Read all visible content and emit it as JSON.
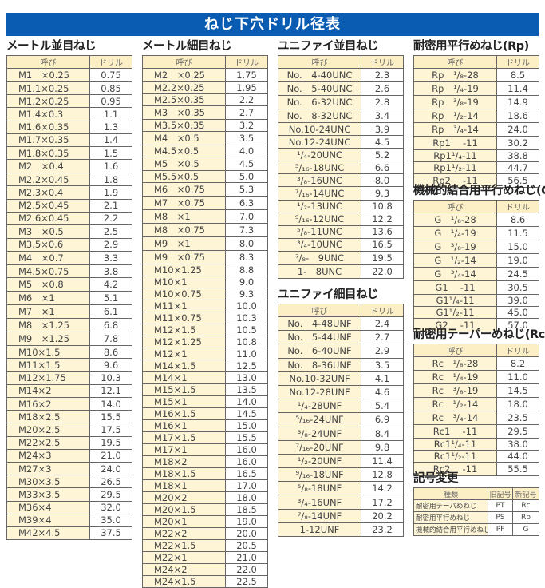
{
  "title": "ねじ下穴ドリル径表",
  "colors": {
    "banner": "#0a5cb3",
    "name_cell": "#fdf5d6",
    "header_cell": "#fcefc6"
  },
  "header": {
    "name": "呼び",
    "drill": "ドリル"
  },
  "tables": {
    "metric_coarse": {
      "title": "メートル並目ねじ",
      "rows": [
        [
          "M1　×0.25",
          "0.75"
        ],
        [
          "M1.1×0.25",
          "0.85"
        ],
        [
          "M1.2×0.25",
          "0.95"
        ],
        [
          "M1.4×0.3",
          "1.1"
        ],
        [
          "M1.6×0.35",
          "1.3"
        ],
        [
          "M1.7×0.35",
          "1.4"
        ],
        [
          "M1.8×0.35",
          "1.5"
        ],
        [
          "M2　×0.4",
          "1.6"
        ],
        [
          "M2.2×0.45",
          "1.8"
        ],
        [
          "M2.3×0.4",
          "1.9"
        ],
        [
          "M2.5×0.45",
          "2.1"
        ],
        [
          "M2.6×0.45",
          "2.2"
        ],
        [
          "M3　×0.5",
          "2.5"
        ],
        [
          "M3.5×0.6",
          "2.9"
        ],
        [
          "M4　×0.7",
          "3.3"
        ],
        [
          "M4.5×0.75",
          "3.8"
        ],
        [
          "M5　×0.8",
          "4.2"
        ],
        [
          "M6　×1",
          "5.1"
        ],
        [
          "M7　×1",
          "6.1"
        ],
        [
          "M8　×1.25",
          "6.8"
        ],
        [
          "M9　×1.25",
          "7.8"
        ],
        [
          "M10×1.5",
          "8.6"
        ],
        [
          "M11×1.5",
          "9.6"
        ],
        [
          "M12×1.75",
          "10.3"
        ],
        [
          "M14×2",
          "12.1"
        ],
        [
          "M16×2",
          "14.0"
        ],
        [
          "M18×2.5",
          "15.5"
        ],
        [
          "M20×2.5",
          "17.5"
        ],
        [
          "M22×2.5",
          "19.5"
        ],
        [
          "M24×3",
          "21.0"
        ],
        [
          "M27×3",
          "24.0"
        ],
        [
          "M30×3.5",
          "26.5"
        ],
        [
          "M33×3.5",
          "29.5"
        ],
        [
          "M36×4",
          "32.0"
        ],
        [
          "M39×4",
          "35.0"
        ],
        [
          "M42×4.5",
          "37.5"
        ]
      ]
    },
    "metric_fine": {
      "title": "メートル細目ねじ",
      "rows": [
        [
          "M2　×0.25",
          "1.75"
        ],
        [
          "M2.2×0.25",
          "1.95"
        ],
        [
          "M2.5×0.35",
          "2.2"
        ],
        [
          "M3　×0.35",
          "2.7"
        ],
        [
          "M3.5×0.35",
          "3.2"
        ],
        [
          "M4　×0.5",
          "3.5"
        ],
        [
          "M4.5×0.5",
          "4.0"
        ],
        [
          "M5　×0.5",
          "4.5"
        ],
        [
          "M5.5×0.5",
          "5.0"
        ],
        [
          "M6　×0.75",
          "5.3"
        ],
        [
          "M7　×0.75",
          "6.3"
        ],
        [
          "M8　×1",
          "7.0"
        ],
        [
          "M8　×0.75",
          "7.3"
        ],
        [
          "M9　×1",
          "8.0"
        ],
        [
          "M9　×0.75",
          "8.3"
        ],
        [
          "M10×1.25",
          "8.8"
        ],
        [
          "M10×1",
          "9.0"
        ],
        [
          "M10×0.75",
          "9.3"
        ],
        [
          "M11×1",
          "10.0"
        ],
        [
          "M11×0.75",
          "10.3"
        ],
        [
          "M12×1.5",
          "10.5"
        ],
        [
          "M12×1.25",
          "10.8"
        ],
        [
          "M12×1",
          "11.0"
        ],
        [
          "M14×1.5",
          "12.5"
        ],
        [
          "M14×1",
          "13.0"
        ],
        [
          "M15×1.5",
          "13.5"
        ],
        [
          "M15×1",
          "14.0"
        ],
        [
          "M16×1.5",
          "14.5"
        ],
        [
          "M16×1",
          "15.0"
        ],
        [
          "M17×1.5",
          "15.5"
        ],
        [
          "M17×1",
          "16.0"
        ],
        [
          "M18×2",
          "16.0"
        ],
        [
          "M18×1.5",
          "16.5"
        ],
        [
          "M18×1",
          "17.0"
        ],
        [
          "M20×2",
          "18.0"
        ],
        [
          "M20×1.5",
          "18.5"
        ],
        [
          "M20×1",
          "19.0"
        ],
        [
          "M22×2",
          "20.0"
        ],
        [
          "M22×1.5",
          "20.5"
        ],
        [
          "M22×1",
          "21.0"
        ],
        [
          "M24×2",
          "22.0"
        ],
        [
          "M24×1.5",
          "22.5"
        ]
      ]
    },
    "unc": {
      "title": "ユニファイ並目ねじ",
      "rows": [
        [
          "No.　4-40UNC",
          "2.3"
        ],
        [
          "No.　5-40UNC",
          "2.6"
        ],
        [
          "No.　6-32UNC",
          "2.8"
        ],
        [
          "No.　8-32UNC",
          "3.4"
        ],
        [
          "No.10-24UNC",
          "3.9"
        ],
        [
          "No.12-24UNC",
          "4.5"
        ],
        [
          "¹/₄-20UNC",
          "5.2"
        ],
        [
          "⁵/₁₆-18UNC",
          "6.6"
        ],
        [
          "³/₈-16UNC",
          "8.0"
        ],
        [
          "⁷/₁₆-14UNC",
          "9.3"
        ],
        [
          "¹/₂-13UNC",
          "10.8"
        ],
        [
          "⁹/₁₆-12UNC",
          "12.2"
        ],
        [
          "⁵/₈-11UNC",
          "13.6"
        ],
        [
          "³/₄-10UNC",
          "16.5"
        ],
        [
          "⁷/₈-　9UNC",
          "19.5"
        ],
        [
          "1-　8UNC",
          "22.0"
        ]
      ]
    },
    "unf": {
      "title": "ユニファイ細目ねじ",
      "rows": [
        [
          "No.　4-48UNF",
          "2.4"
        ],
        [
          "No.　5-44UNF",
          "2.7"
        ],
        [
          "No.　6-40UNF",
          "2.9"
        ],
        [
          "No.　8-36UNF",
          "3.5"
        ],
        [
          "No.10-32UNF",
          "4.1"
        ],
        [
          "No.12-28UNF",
          "4.6"
        ],
        [
          "¹/₄-28UNF",
          "5.4"
        ],
        [
          "⁵/₁₆-24UNF",
          "6.9"
        ],
        [
          "³/₈-24UNF",
          "8.4"
        ],
        [
          "⁷/₁₆-20UNF",
          "9.8"
        ],
        [
          "¹/₂-20UNF",
          "11.4"
        ],
        [
          "⁹/₁₆-18UNF",
          "12.8"
        ],
        [
          "⁵/₈-18UNF",
          "14.2"
        ],
        [
          "³/₄-16UNF",
          "17.2"
        ],
        [
          "⁷/₈-14UNF",
          "20.2"
        ],
        [
          "1-12UNF",
          "23.2"
        ]
      ]
    },
    "rp": {
      "title": "耐密用平行めねじ(Rp)",
      "rows": [
        [
          "Rp　¹/₈-28",
          "8.5"
        ],
        [
          "Rp　¹/₄-19",
          "11.4"
        ],
        [
          "Rp　³/₈-19",
          "14.9"
        ],
        [
          "Rp　¹/₂-14",
          "18.6"
        ],
        [
          "Rp　³/₄-14",
          "24.0"
        ],
        [
          "Rp1　 -11",
          "30.2"
        ],
        [
          "Rp1¹/₄-11",
          "38.8"
        ],
        [
          "Rp1¹/₂-11",
          "44.7"
        ],
        [
          "Rp2　 -11",
          "56.5"
        ]
      ]
    },
    "g": {
      "title": "機械的結合用平行めねじ(G)",
      "rows": [
        [
          "G　¹/₈-28",
          "8.6"
        ],
        [
          "G　¹/₄-19",
          "11.5"
        ],
        [
          "G　³/₈-19",
          "15.0"
        ],
        [
          "G　¹/₂-14",
          "19.0"
        ],
        [
          "G　³/₄-14",
          "24.5"
        ],
        [
          "G1　 -11",
          "30.5"
        ],
        [
          "G1¹/₄-11",
          "39.0"
        ],
        [
          "G1¹/₂-11",
          "45.0"
        ],
        [
          "G2　 -11",
          "57.0"
        ]
      ]
    },
    "rc": {
      "title": "耐密用テーパーめねじ(Rc)",
      "rows": [
        [
          "Rc　¹/₈-28",
          "8.2"
        ],
        [
          "Rc　¹/₄-19",
          "11.0"
        ],
        [
          "Rc　³/₈-19",
          "14.5"
        ],
        [
          "Rc　¹/₂-14",
          "18.0"
        ],
        [
          "Rc　³/₄-14",
          "23.5"
        ],
        [
          "Rc1　 -11",
          "29.5"
        ],
        [
          "Rc1¹/₄-11",
          "38.0"
        ],
        [
          "Rc1¹/₂-11",
          "44.0"
        ],
        [
          "Rc2　 -11",
          "55.5"
        ]
      ]
    }
  },
  "symbol_change": {
    "title": "記号変更",
    "headers": [
      "種類",
      "旧記号",
      "新記号"
    ],
    "rows": [
      [
        "耐密用テーパめねじ",
        "PT",
        "Rc"
      ],
      [
        "耐密用平行めねじ",
        "PS",
        "Rp"
      ],
      [
        "機械的結合用平行めねじ",
        "PF",
        "G"
      ]
    ]
  }
}
